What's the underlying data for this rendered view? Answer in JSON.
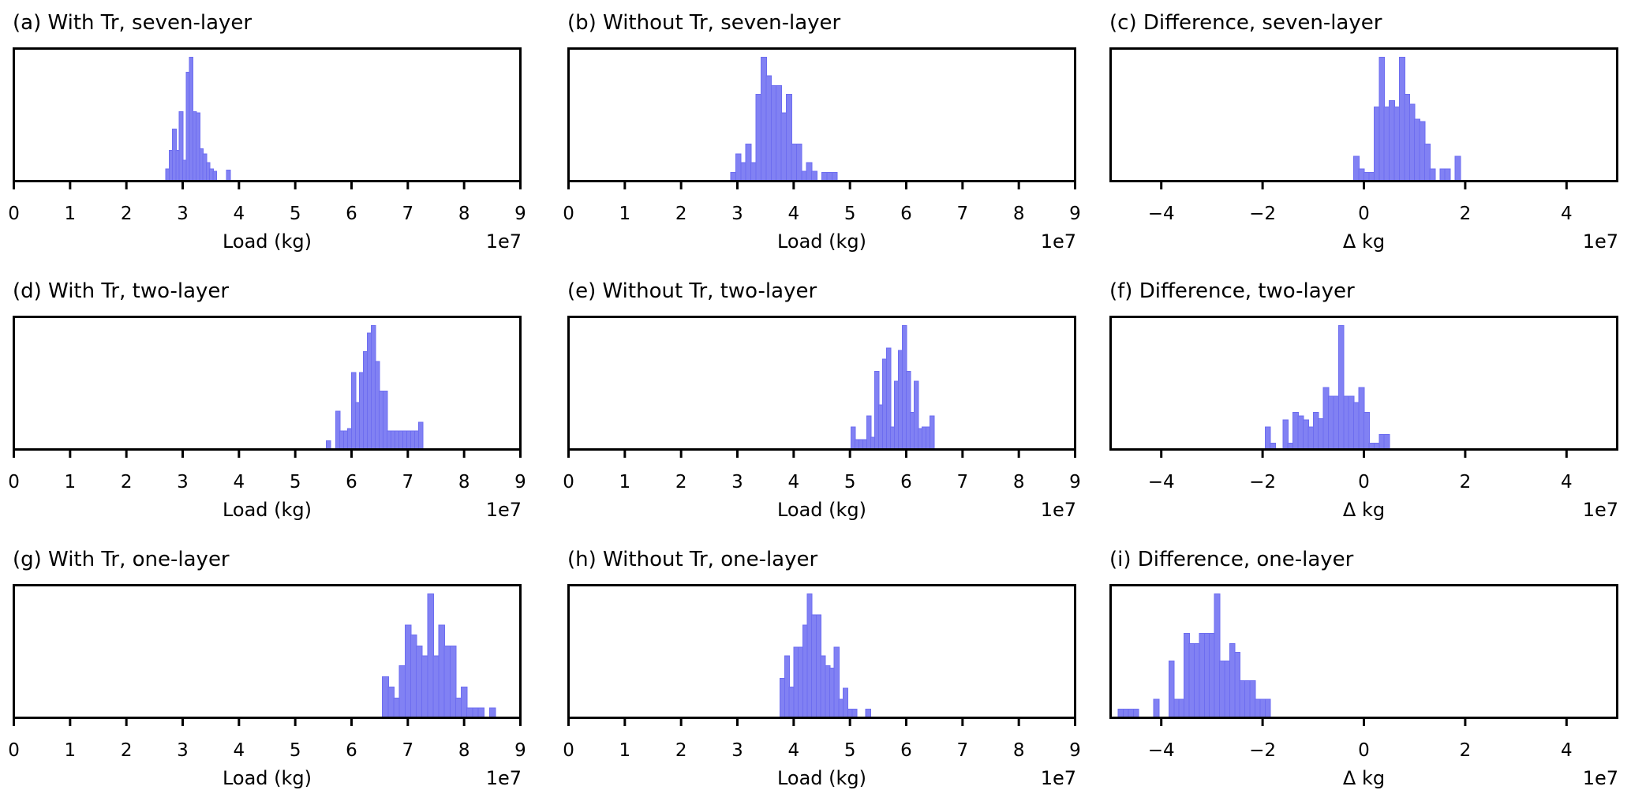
{
  "figure": {
    "background": "#ffffff",
    "bar_fill": "#8181f3",
    "bar_edge": "#6d6df0",
    "axis_color": "#000000",
    "text_color": "#000000",
    "offset_text": "1e7"
  },
  "chart_data": [
    {
      "panel": "a",
      "type": "bar",
      "title": "(a) With Tr, seven-layer",
      "xlabel": "Load (kg)",
      "ylabel": "",
      "offset_text": "1e7",
      "xlim": [
        0,
        9
      ],
      "grid": false,
      "yticks": [],
      "xticks": [
        0,
        1,
        2,
        3,
        4,
        5,
        6,
        7,
        8,
        9
      ],
      "xtick_labels": [
        "0",
        "1",
        "2",
        "3",
        "4",
        "5",
        "6",
        "7",
        "8",
        "9"
      ],
      "bin_width": 0.06,
      "bars_note": "pairs of [bin left edge in 1e7 kg, relative height 0-1]",
      "bars": [
        [
          2.7,
          0.1
        ],
        [
          2.76,
          0.25
        ],
        [
          2.82,
          0.42
        ],
        [
          2.88,
          0.25
        ],
        [
          2.94,
          0.56
        ],
        [
          3.0,
          0.17
        ],
        [
          3.06,
          0.88
        ],
        [
          3.12,
          1.0
        ],
        [
          3.18,
          0.56
        ],
        [
          3.24,
          0.55
        ],
        [
          3.3,
          0.26
        ],
        [
          3.36,
          0.22
        ],
        [
          3.42,
          0.15
        ],
        [
          3.48,
          0.1
        ],
        [
          3.54,
          0.08
        ],
        [
          3.78,
          0.09
        ]
      ]
    },
    {
      "panel": "b",
      "type": "bar",
      "title": "(b) Without Tr, seven-layer",
      "xlabel": "Load (kg)",
      "ylabel": "",
      "offset_text": "1e7",
      "xlim": [
        0,
        9
      ],
      "grid": false,
      "yticks": [],
      "xticks": [
        0,
        1,
        2,
        3,
        4,
        5,
        6,
        7,
        8,
        9
      ],
      "xtick_labels": [
        "0",
        "1",
        "2",
        "3",
        "4",
        "5",
        "6",
        "7",
        "8",
        "9"
      ],
      "bin_width": 0.09,
      "bars": [
        [
          2.88,
          0.07
        ],
        [
          2.97,
          0.22
        ],
        [
          3.06,
          0.15
        ],
        [
          3.15,
          0.3
        ],
        [
          3.24,
          0.15
        ],
        [
          3.33,
          0.7
        ],
        [
          3.42,
          1.0
        ],
        [
          3.51,
          0.85
        ],
        [
          3.6,
          0.77
        ],
        [
          3.69,
          0.77
        ],
        [
          3.78,
          0.55
        ],
        [
          3.87,
          0.7
        ],
        [
          3.96,
          0.3
        ],
        [
          4.05,
          0.3
        ],
        [
          4.14,
          0.08
        ],
        [
          4.23,
          0.15
        ],
        [
          4.32,
          0.08
        ],
        [
          4.5,
          0.07
        ],
        [
          4.59,
          0.07
        ],
        [
          4.68,
          0.07
        ]
      ]
    },
    {
      "panel": "c",
      "type": "bar",
      "title": "(c) Difference, seven-layer",
      "xlabel": "Δ kg",
      "ylabel": "",
      "offset_text": "1e7",
      "xlim": [
        -5,
        5
      ],
      "grid": false,
      "yticks": [],
      "xticks": [
        -4,
        -2,
        0,
        2,
        4
      ],
      "xtick_labels": [
        "−4",
        "−2",
        "0",
        "2",
        "4"
      ],
      "bin_width": 0.1,
      "bars": [
        [
          -0.2,
          0.2
        ],
        [
          -0.1,
          0.1
        ],
        [
          0.0,
          0.07
        ],
        [
          0.1,
          0.07
        ],
        [
          0.2,
          0.6
        ],
        [
          0.3,
          1.0
        ],
        [
          0.4,
          0.6
        ],
        [
          0.5,
          0.65
        ],
        [
          0.6,
          0.6
        ],
        [
          0.7,
          1.0
        ],
        [
          0.8,
          0.7
        ],
        [
          0.9,
          0.62
        ],
        [
          1.0,
          0.5
        ],
        [
          1.1,
          0.48
        ],
        [
          1.2,
          0.3
        ],
        [
          1.3,
          0.1
        ],
        [
          1.5,
          0.1
        ],
        [
          1.6,
          0.1
        ],
        [
          1.8,
          0.2
        ]
      ]
    },
    {
      "panel": "d",
      "type": "bar",
      "title": "(d) With Tr, two-layer",
      "xlabel": "Load (kg)",
      "ylabel": "",
      "offset_text": "1e7",
      "xlim": [
        0,
        9
      ],
      "grid": false,
      "yticks": [],
      "xticks": [
        0,
        1,
        2,
        3,
        4,
        5,
        6,
        7,
        8,
        9
      ],
      "xtick_labels": [
        "0",
        "1",
        "2",
        "3",
        "4",
        "5",
        "6",
        "7",
        "8",
        "9"
      ],
      "bin_width": 0.07,
      "bars": [
        [
          5.55,
          0.07
        ],
        [
          5.72,
          0.31
        ],
        [
          5.79,
          0.15
        ],
        [
          5.86,
          0.15
        ],
        [
          5.93,
          0.17
        ],
        [
          6.0,
          0.62
        ],
        [
          6.07,
          0.38
        ],
        [
          6.14,
          0.62
        ],
        [
          6.21,
          0.79
        ],
        [
          6.28,
          0.94
        ],
        [
          6.35,
          1.0
        ],
        [
          6.42,
          0.71
        ],
        [
          6.49,
          0.47
        ],
        [
          6.56,
          0.47
        ],
        [
          6.63,
          0.15
        ],
        [
          6.7,
          0.15
        ],
        [
          6.77,
          0.15
        ],
        [
          6.84,
          0.15
        ],
        [
          6.91,
          0.15
        ],
        [
          6.98,
          0.15
        ],
        [
          7.05,
          0.15
        ],
        [
          7.12,
          0.15
        ],
        [
          7.19,
          0.22
        ]
      ]
    },
    {
      "panel": "e",
      "type": "bar",
      "title": "(e) Without Tr, two-layer",
      "xlabel": "Load (kg)",
      "ylabel": "",
      "offset_text": "1e7",
      "xlim": [
        0,
        9
      ],
      "grid": false,
      "yticks": [],
      "xticks": [
        0,
        1,
        2,
        3,
        4,
        5,
        6,
        7,
        8,
        9
      ],
      "xtick_labels": [
        "0",
        "1",
        "2",
        "3",
        "4",
        "5",
        "6",
        "7",
        "8",
        "9"
      ],
      "bin_width": 0.07,
      "bars": [
        [
          5.02,
          0.18
        ],
        [
          5.09,
          0.08
        ],
        [
          5.16,
          0.08
        ],
        [
          5.23,
          0.08
        ],
        [
          5.3,
          0.27
        ],
        [
          5.37,
          0.1
        ],
        [
          5.44,
          0.63
        ],
        [
          5.51,
          0.36
        ],
        [
          5.58,
          0.73
        ],
        [
          5.65,
          0.82
        ],
        [
          5.72,
          0.18
        ],
        [
          5.79,
          0.55
        ],
        [
          5.86,
          0.8
        ],
        [
          5.93,
          1.0
        ],
        [
          6.0,
          0.63
        ],
        [
          6.07,
          0.3
        ],
        [
          6.14,
          0.55
        ],
        [
          6.21,
          0.17
        ],
        [
          6.28,
          0.18
        ],
        [
          6.35,
          0.18
        ],
        [
          6.42,
          0.27
        ]
      ]
    },
    {
      "panel": "f",
      "type": "bar",
      "title": "(f) Difference, two-layer",
      "xlabel": "Δ kg",
      "ylabel": "",
      "offset_text": "1e7",
      "xlim": [
        -5,
        5
      ],
      "grid": false,
      "yticks": [],
      "xticks": [
        -4,
        -2,
        0,
        2,
        4
      ],
      "xtick_labels": [
        "−4",
        "−2",
        "0",
        "2",
        "4"
      ],
      "bin_width": 0.1,
      "bars": [
        [
          -1.95,
          0.18
        ],
        [
          -1.85,
          0.05
        ],
        [
          -1.6,
          0.24
        ],
        [
          -1.5,
          0.05
        ],
        [
          -1.4,
          0.3
        ],
        [
          -1.3,
          0.27
        ],
        [
          -1.2,
          0.24
        ],
        [
          -1.1,
          0.18
        ],
        [
          -1.0,
          0.3
        ],
        [
          -0.9,
          0.25
        ],
        [
          -0.8,
          0.5
        ],
        [
          -0.7,
          0.43
        ],
        [
          -0.6,
          0.43
        ],
        [
          -0.5,
          1.0
        ],
        [
          -0.4,
          0.43
        ],
        [
          -0.3,
          0.43
        ],
        [
          -0.2,
          0.38
        ],
        [
          -0.1,
          0.5
        ],
        [
          0.0,
          0.3
        ],
        [
          0.1,
          0.05
        ],
        [
          0.2,
          0.05
        ],
        [
          0.3,
          0.12
        ],
        [
          0.4,
          0.12
        ]
      ]
    },
    {
      "panel": "g",
      "type": "bar",
      "title": "(g) With Tr, one-layer",
      "xlabel": "Load (kg)",
      "ylabel": "",
      "offset_text": "1e7",
      "xlim": [
        0,
        9
      ],
      "grid": false,
      "yticks": [],
      "xticks": [
        0,
        1,
        2,
        3,
        4,
        5,
        6,
        7,
        8,
        9
      ],
      "xtick_labels": [
        "0",
        "1",
        "2",
        "3",
        "4",
        "5",
        "6",
        "7",
        "8",
        "9"
      ],
      "bin_width": 0.1,
      "bars": [
        [
          6.55,
          0.33
        ],
        [
          6.65,
          0.25
        ],
        [
          6.75,
          0.16
        ],
        [
          6.85,
          0.42
        ],
        [
          6.95,
          0.75
        ],
        [
          7.05,
          0.67
        ],
        [
          7.15,
          0.58
        ],
        [
          7.25,
          0.5
        ],
        [
          7.35,
          1.0
        ],
        [
          7.45,
          0.5
        ],
        [
          7.55,
          0.75
        ],
        [
          7.65,
          0.58
        ],
        [
          7.75,
          0.58
        ],
        [
          7.85,
          0.16
        ],
        [
          7.95,
          0.25
        ],
        [
          8.05,
          0.08
        ],
        [
          8.15,
          0.08
        ],
        [
          8.25,
          0.08
        ],
        [
          8.45,
          0.08
        ]
      ]
    },
    {
      "panel": "h",
      "type": "bar",
      "title": "(h) Without Tr, one-layer",
      "xlabel": "Load (kg)",
      "ylabel": "",
      "offset_text": "1e7",
      "xlim": [
        0,
        9
      ],
      "grid": false,
      "yticks": [],
      "xticks": [
        0,
        1,
        2,
        3,
        4,
        5,
        6,
        7,
        8,
        9
      ],
      "xtick_labels": [
        "0",
        "1",
        "2",
        "3",
        "4",
        "5",
        "6",
        "7",
        "8",
        "9"
      ],
      "bin_width": 0.08,
      "bars": [
        [
          3.76,
          0.32
        ],
        [
          3.84,
          0.5
        ],
        [
          3.92,
          0.25
        ],
        [
          4.0,
          0.57
        ],
        [
          4.08,
          0.57
        ],
        [
          4.16,
          0.75
        ],
        [
          4.24,
          1.0
        ],
        [
          4.32,
          0.83
        ],
        [
          4.4,
          0.83
        ],
        [
          4.48,
          0.5
        ],
        [
          4.56,
          0.42
        ],
        [
          4.64,
          0.4
        ],
        [
          4.72,
          0.57
        ],
        [
          4.8,
          0.15
        ],
        [
          4.88,
          0.24
        ],
        [
          4.96,
          0.07
        ],
        [
          5.04,
          0.07
        ],
        [
          5.28,
          0.07
        ]
      ]
    },
    {
      "panel": "i",
      "type": "bar",
      "title": "(i) Difference, one-layer",
      "xlabel": "Δ kg",
      "ylabel": "",
      "offset_text": "1e7",
      "xlim": [
        -5,
        5
      ],
      "grid": false,
      "yticks": [],
      "xticks": [
        -4,
        -2,
        0,
        2,
        4
      ],
      "xtick_labels": [
        "−4",
        "−2",
        "0",
        "2",
        "4"
      ],
      "bin_width": 0.1,
      "bars": [
        [
          -4.85,
          0.07
        ],
        [
          -4.75,
          0.07
        ],
        [
          -4.65,
          0.07
        ],
        [
          -4.55,
          0.07
        ],
        [
          -4.15,
          0.15
        ],
        [
          -3.85,
          0.46
        ],
        [
          -3.75,
          0.15
        ],
        [
          -3.65,
          0.15
        ],
        [
          -3.55,
          0.68
        ],
        [
          -3.45,
          0.6
        ],
        [
          -3.35,
          0.6
        ],
        [
          -3.25,
          0.68
        ],
        [
          -3.15,
          0.68
        ],
        [
          -3.05,
          0.68
        ],
        [
          -2.95,
          1.0
        ],
        [
          -2.85,
          0.46
        ],
        [
          -2.75,
          0.46
        ],
        [
          -2.65,
          0.6
        ],
        [
          -2.55,
          0.53
        ],
        [
          -2.45,
          0.3
        ],
        [
          -2.35,
          0.3
        ],
        [
          -2.25,
          0.3
        ],
        [
          -2.15,
          0.15
        ],
        [
          -2.05,
          0.15
        ],
        [
          -1.95,
          0.15
        ]
      ]
    }
  ]
}
